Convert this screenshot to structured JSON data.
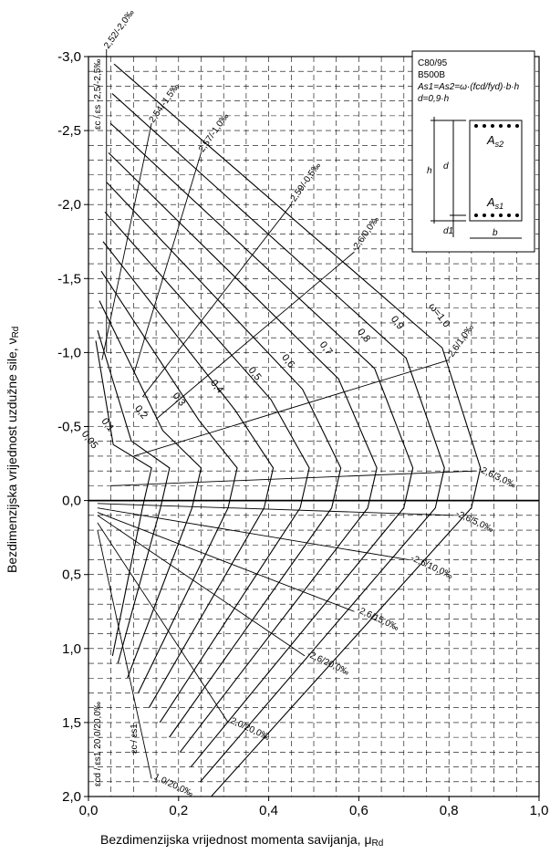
{
  "chart_data": {
    "type": "line",
    "title": "",
    "xlabel": "Bezdimenzijska vrijednost momenta savijanja, μ",
    "xlabel_sub": "Rd",
    "ylabel": "Bezdimenzijska vrijednost uzdužne sile, ν",
    "ylabel_sub": "Rd",
    "xlim": [
      0,
      1.0
    ],
    "ylim": [
      -3.0,
      2.0
    ],
    "y_inverted": true,
    "grid": "dashed",
    "x_ticks": [
      0,
      0.2,
      0.4,
      0.6,
      0.8,
      1.0
    ],
    "x_tick_labels": [
      "0,0",
      "0,2",
      "0,4",
      "0,6",
      "0,8",
      "1,0"
    ],
    "y_ticks": [
      -3.0,
      -2.5,
      -2.0,
      -1.5,
      -1.0,
      -0.5,
      0.0,
      0.5,
      1.0,
      1.5,
      2.0
    ],
    "y_tick_labels": [
      "-3,0",
      "-2,5",
      "-2,0",
      "-1,5",
      "-1,0",
      "-0,5",
      "0,0",
      "0,5",
      "1,0",
      "1,5",
      "2,0"
    ],
    "omega_series": [
      {
        "omega": 0.05,
        "label": "0,05",
        "mu_max": 0.14,
        "nu_top": -1.08,
        "nu_bot": 1.05
      },
      {
        "omega": 0.1,
        "label": "0,1",
        "mu_max": 0.18,
        "nu_top": -1.15,
        "nu_bot": 1.1
      },
      {
        "omega": 0.2,
        "label": "0,2",
        "mu_max": 0.25,
        "nu_top": -1.35,
        "nu_bot": 1.2
      },
      {
        "omega": 0.3,
        "label": "0,3",
        "mu_max": 0.33,
        "nu_top": -1.55,
        "nu_bot": 1.3
      },
      {
        "omega": 0.4,
        "label": "0,4",
        "mu_max": 0.41,
        "nu_top": -1.75,
        "nu_bot": 1.4
      },
      {
        "omega": 0.5,
        "label": "0,5",
        "mu_max": 0.49,
        "nu_top": -1.95,
        "nu_bot": 1.5
      },
      {
        "omega": 0.6,
        "label": "0,6",
        "mu_max": 0.56,
        "nu_top": -2.15,
        "nu_bot": 1.6
      },
      {
        "omega": 0.7,
        "label": "0,7",
        "mu_max": 0.64,
        "nu_top": -2.35,
        "nu_bot": 1.7
      },
      {
        "omega": 0.8,
        "label": "0,8",
        "mu_max": 0.72,
        "nu_top": -2.55,
        "nu_bot": 1.8
      },
      {
        "omega": 0.9,
        "label": "0,9",
        "mu_max": 0.79,
        "nu_top": -2.75,
        "nu_bot": 1.9
      },
      {
        "omega": 1.0,
        "label": "ω=1,0",
        "mu_max": 0.87,
        "nu_top": -2.95,
        "nu_bot": 2.0
      }
    ],
    "strain_lines": [
      {
        "label": "2,52/-2,0‰",
        "from": [
          0.04,
          -3.05
        ],
        "to": [
          0.04,
          -1.0
        ]
      },
      {
        "label": "2,54/-1,5‰",
        "from": [
          0.14,
          -2.55
        ],
        "to": [
          0.03,
          -0.95
        ]
      },
      {
        "label": "2,57/-1,0‰",
        "from": [
          0.25,
          -2.35
        ],
        "to": [
          0.1,
          -0.85
        ]
      },
      {
        "label": "-2,59/-0,5‰",
        "from": [
          0.45,
          -2.0
        ],
        "to": [
          0.12,
          -0.7
        ]
      },
      {
        "label": "-2,6/0,0‰",
        "from": [
          0.59,
          -1.68
        ],
        "to": [
          0.15,
          -0.55
        ]
      },
      {
        "label": "-2,6/1,0‰",
        "from": [
          0.8,
          -0.95
        ],
        "to": [
          0.1,
          -0.3
        ]
      },
      {
        "label": "-2,6/3,0‰",
        "from": [
          0.86,
          -0.2
        ],
        "to": [
          0.05,
          -0.1
        ]
      },
      {
        "label": "-2,6/5,0‰",
        "from": [
          0.81,
          0.1
        ],
        "to": [
          0.02,
          0.02
        ]
      },
      {
        "label": "-2,6/10,0‰",
        "from": [
          0.71,
          0.4
        ],
        "to": [
          0.02,
          0.05
        ]
      },
      {
        "label": "-2,6/15,0‰",
        "from": [
          0.59,
          0.75
        ],
        "to": [
          0.02,
          0.08
        ]
      },
      {
        "label": "-2,6/20,0‰",
        "from": [
          0.48,
          1.05
        ],
        "to": [
          0.02,
          0.1
        ]
      },
      {
        "label": "2,0/20,0‰",
        "from": [
          0.31,
          1.5
        ],
        "to": [
          0.02,
          0.15
        ]
      },
      {
        "label": "1,0/20,0‰",
        "from": [
          0.14,
          1.88
        ],
        "to": [
          0.02,
          0.2
        ]
      }
    ],
    "corner_labels": {
      "top_left": [
        "εc / εs",
        "-2,5/-2,5‰"
      ],
      "bottom_left": [
        "εcd / εs1",
        "20,0/20,0‰"
      ],
      "bottom_mid": [
        "εc / εs1"
      ]
    },
    "legend": {
      "lines": [
        "C80/95",
        "B500B",
        "As1=As2=ω·(fcd/fyd)·b·h",
        "d=0,9·h"
      ],
      "As2": "As2",
      "As1": "As1",
      "h": "h",
      "d": "d",
      "d1": "d1",
      "b": "b",
      "As_sym": "A",
      "s2_sub": "s2",
      "s1_sub": "s1"
    }
  }
}
